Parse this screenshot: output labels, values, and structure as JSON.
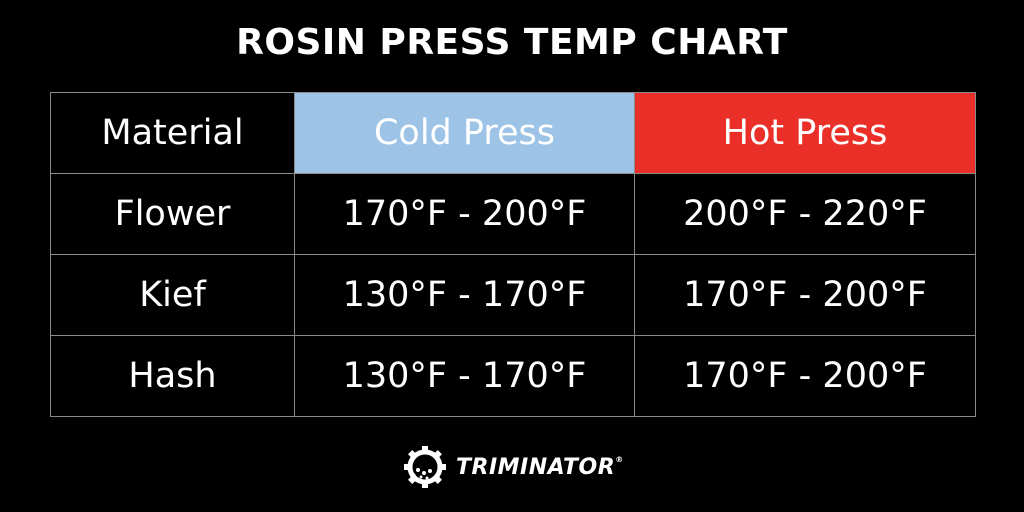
{
  "title": "ROSIN PRESS TEMP CHART",
  "table": {
    "header": [
      "Material",
      "Cold Press",
      "Hot Press"
    ],
    "rows": [
      [
        "Flower",
        "170°F - 200°F",
        "200°F - 220°F"
      ],
      [
        "Kief",
        "130°F - 170°F",
        "170°F - 200°F"
      ],
      [
        "Hash",
        "130°F - 170°F",
        "170°F - 200°F"
      ]
    ]
  },
  "logo": {
    "text": "TRIMINATOR",
    "mark": "®"
  }
}
